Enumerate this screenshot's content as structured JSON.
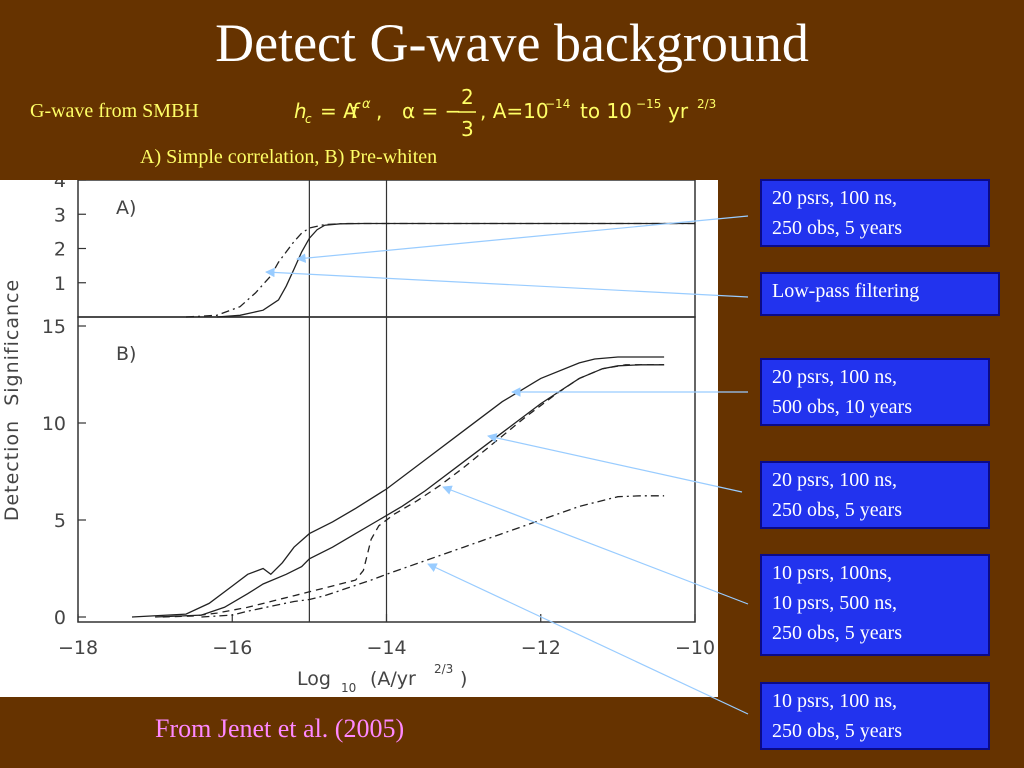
{
  "title": "Detect G-wave background",
  "subtitle": "G-wave from SMBH",
  "formula": {
    "lhs": "h",
    "lhs_sub": "c",
    "rhs": "= A",
    "f": "f",
    "alpha": "α",
    "comma": ",",
    "alpha_eq": "α = −",
    "frac_num": "2",
    "frac_den": "3",
    "a_range": ", A=10",
    "exp1": "−14",
    "to": " to 10",
    "exp2": "−15",
    "unit": " yr",
    "unit_exp": "2/3"
  },
  "caption": "A) Simple correlation, B) Pre-whiten",
  "source": "From Jenet et al. (2005)",
  "annotations": [
    {
      "text": "20 psrs, 100 ns,\n250 obs, 5 years"
    },
    {
      "text": "Low-pass filtering"
    },
    {
      "text": "20 psrs, 100 ns,\n500 obs, 10 years"
    },
    {
      "text": "20 psrs, 100 ns,\n250 obs, 5 years"
    },
    {
      "text": "10 psrs, 100ns,\n10 psrs, 500 ns,\n250 obs, 5 years"
    },
    {
      "text": "10 psrs, 100 ns,\n250 obs, 5 years"
    }
  ],
  "chart_data": {
    "type": "line",
    "ylabel": "Detection  Significance",
    "xlabel_base": "Log",
    "xlabel_sub": "10",
    "xlabel_paren": "(A/yr",
    "xlabel_sup": "2/3",
    "xlabel_close": ")",
    "xlim": [
      -18,
      -10
    ],
    "xticks": [
      "−18",
      "−16",
      "−14",
      "−12",
      "−10"
    ],
    "xtick_values": [
      -18,
      -16,
      -14,
      -12,
      -10
    ],
    "vlines": [
      -15,
      -14
    ],
    "panels": [
      {
        "label": "A)",
        "ylim": [
          0,
          4
        ],
        "yticks": [
          "1",
          "2",
          "3",
          "4"
        ],
        "ytick_values": [
          1,
          2,
          3,
          4
        ],
        "series": [
          {
            "style": "solid",
            "x": [
              -16.2,
              -15.9,
              -15.6,
              -15.4,
              -15.3,
              -15.2,
              -15.1,
              -15.0,
              -14.9,
              -14.8,
              -14.6,
              -14.3,
              -12,
              -10
            ],
            "y": [
              0,
              0.05,
              0.2,
              0.5,
              0.9,
              1.4,
              1.9,
              2.3,
              2.55,
              2.68,
              2.72,
              2.73,
              2.73,
              2.73
            ]
          },
          {
            "style": "dashdot",
            "x": [
              -16.6,
              -16.2,
              -15.9,
              -15.7,
              -15.5,
              -15.4,
              -15.3,
              -15.2,
              -15.1,
              -15.0,
              -14.8,
              -14.5,
              -12,
              -10
            ],
            "y": [
              0,
              0.05,
              0.3,
              0.7,
              1.2,
              1.6,
              1.9,
              2.2,
              2.45,
              2.6,
              2.7,
              2.73,
              2.73,
              2.73
            ]
          }
        ]
      },
      {
        "label": "B)",
        "ylim": [
          0,
          15
        ],
        "yticks": [
          "0",
          "5",
          "10",
          "15"
        ],
        "ytick_values": [
          0,
          5,
          10,
          15
        ],
        "series": [
          {
            "style": "solid",
            "x": [
              -17.3,
              -16.6,
              -16.3,
              -16.0,
              -15.8,
              -15.6,
              -15.5,
              -15.35,
              -15.2,
              -15.0,
              -14.7,
              -14.4,
              -14.0,
              -13.5,
              -13.0,
              -12.5,
              -12.0,
              -11.5,
              -11.3,
              -11.0,
              -10.7,
              -10.4
            ],
            "y": [
              0,
              0.15,
              0.7,
              1.6,
              2.2,
              2.5,
              2.2,
              2.8,
              3.6,
              4.3,
              4.9,
              5.6,
              6.6,
              8.1,
              9.6,
              11.1,
              12.3,
              13.1,
              13.3,
              13.4,
              13.4,
              13.4
            ]
          },
          {
            "style": "solid",
            "x": [
              -17.0,
              -16.4,
              -16.1,
              -15.8,
              -15.6,
              -15.3,
              -15.1,
              -15.0,
              -14.7,
              -14.4,
              -14.1,
              -13.8,
              -13.5,
              -13.0,
              -12.5,
              -12.0,
              -11.5,
              -11.2,
              -11.0,
              -10.7,
              -10.4
            ],
            "y": [
              0,
              0.1,
              0.5,
              1.2,
              1.7,
              2.2,
              2.6,
              3.0,
              3.6,
              4.3,
              5.0,
              5.7,
              6.5,
              8.0,
              9.5,
              11.0,
              12.3,
              12.8,
              12.95,
              13.0,
              13.0
            ]
          },
          {
            "style": "dashed",
            "x": [
              -16.9,
              -16.5,
              -16.2,
              -15.8,
              -15.5,
              -15.2,
              -15.0,
              -14.7,
              -14.4,
              -14.3,
              -14.2,
              -14.1,
              -13.9,
              -13.6,
              -13.3,
              -13.0,
              -12.6,
              -12.2,
              -11.8,
              -11.5,
              -11.2,
              -10.9,
              -10.4
            ],
            "y": [
              0,
              0.05,
              0.2,
              0.5,
              0.8,
              1.1,
              1.3,
              1.6,
              1.9,
              2.4,
              4.0,
              4.7,
              5.3,
              6.0,
              6.8,
              7.7,
              9.0,
              10.3,
              11.5,
              12.3,
              12.8,
              13.0,
              13.0
            ]
          },
          {
            "style": "dashdot",
            "x": [
              -16.4,
              -16.0,
              -15.8,
              -15.5,
              -15.2,
              -15.0,
              -14.8,
              -14.5,
              -14.2,
              -14.0,
              -13.5,
              -13.0,
              -12.5,
              -12.0,
              -11.5,
              -11.0,
              -10.7,
              -10.4
            ],
            "y": [
              0,
              0.1,
              0.3,
              0.55,
              0.8,
              0.9,
              1.1,
              1.5,
              1.9,
              2.2,
              2.9,
              3.6,
              4.3,
              5.0,
              5.7,
              6.2,
              6.25,
              6.25
            ]
          }
        ]
      }
    ]
  }
}
